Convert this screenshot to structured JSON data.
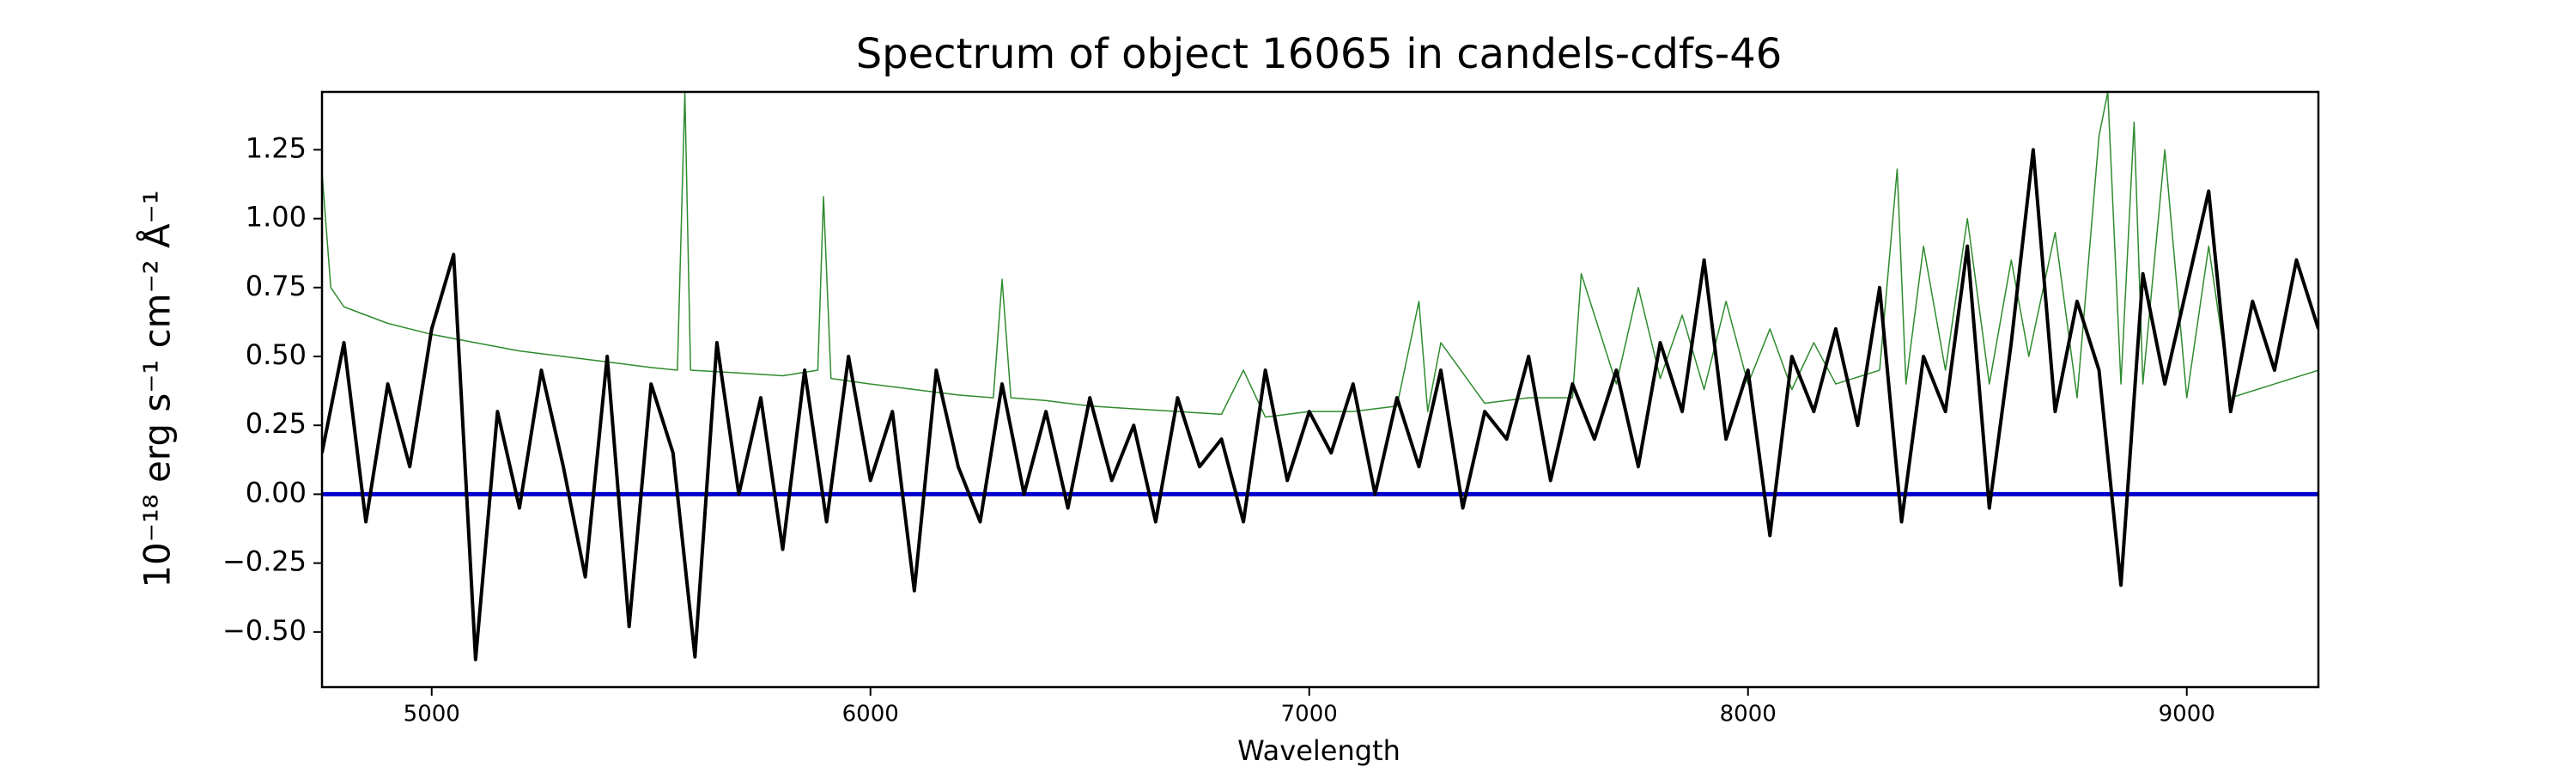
{
  "chart_data": {
    "type": "line",
    "title": "Spectrum of object 16065 in candels-cdfs-46",
    "xlabel": "Wavelength",
    "ylabel": "10⁻¹⁸ erg s⁻¹ cm⁻² Å⁻¹",
    "xlim": [
      4750,
      9300
    ],
    "ylim": [
      -0.7,
      1.46
    ],
    "xticks": [
      5000,
      6000,
      7000,
      8000,
      9000
    ],
    "yticks": [
      {
        "value": -0.5,
        "label": "−0.50"
      },
      {
        "value": -0.25,
        "label": "−0.25"
      },
      {
        "value": 0,
        "label": "0.00"
      },
      {
        "value": 0.25,
        "label": "0.25"
      },
      {
        "value": 0.5,
        "label": "0.50"
      },
      {
        "value": 0.75,
        "label": "0.75"
      },
      {
        "value": 1.0,
        "label": "1.00"
      },
      {
        "value": 1.25,
        "label": "1.25"
      }
    ],
    "grid": false,
    "series": [
      {
        "color": "#2e8b2e",
        "linewidth": 1.5,
        "x": [
          4750,
          4770,
          4800,
          4900,
          5000,
          5100,
          5200,
          5300,
          5400,
          5500,
          5560,
          5577,
          5590,
          5700,
          5800,
          5880,
          5893,
          5910,
          6000,
          6100,
          6200,
          6280,
          6300,
          6320,
          6400,
          6500,
          6600,
          6700,
          6800,
          6850,
          6900,
          7000,
          7100,
          7200,
          7250,
          7270,
          7300,
          7400,
          7500,
          7600,
          7620,
          7700,
          7750,
          7800,
          7850,
          7900,
          7950,
          8000,
          8050,
          8100,
          8150,
          8200,
          8300,
          8340,
          8360,
          8400,
          8450,
          8500,
          8550,
          8600,
          8640,
          8700,
          8750,
          8800,
          8820,
          8850,
          8880,
          8900,
          8950,
          9000,
          9050,
          9100,
          9200,
          9300
        ],
        "values": [
          1.17,
          0.75,
          0.68,
          0.62,
          0.58,
          0.55,
          0.52,
          0.5,
          0.48,
          0.46,
          0.45,
          1.46,
          0.45,
          0.44,
          0.43,
          0.45,
          1.08,
          0.42,
          0.4,
          0.38,
          0.36,
          0.35,
          0.78,
          0.35,
          0.34,
          0.32,
          0.31,
          0.3,
          0.29,
          0.45,
          0.28,
          0.3,
          0.3,
          0.32,
          0.7,
          0.3,
          0.55,
          0.33,
          0.35,
          0.35,
          0.8,
          0.4,
          0.75,
          0.42,
          0.65,
          0.38,
          0.7,
          0.4,
          0.6,
          0.38,
          0.55,
          0.4,
          0.45,
          1.18,
          0.4,
          0.9,
          0.45,
          1.0,
          0.4,
          0.85,
          0.5,
          0.95,
          0.35,
          1.3,
          1.46,
          0.4,
          1.35,
          0.4,
          1.25,
          0.35,
          0.9,
          0.35,
          0.4,
          0.45
        ]
      },
      {
        "color": "#0000cc",
        "linewidth": 5,
        "x": [
          4750,
          9300
        ],
        "values": [
          0,
          0
        ]
      },
      {
        "color": "#000000",
        "linewidth": 4,
        "x": [
          4750,
          4800,
          4850,
          4900,
          4950,
          5000,
          5050,
          5100,
          5150,
          5200,
          5250,
          5300,
          5350,
          5400,
          5450,
          5500,
          5550,
          5600,
          5650,
          5700,
          5750,
          5800,
          5850,
          5900,
          5950,
          6000,
          6050,
          6100,
          6150,
          6200,
          6250,
          6300,
          6350,
          6400,
          6450,
          6500,
          6550,
          6600,
          6650,
          6700,
          6750,
          6800,
          6850,
          6900,
          6950,
          7000,
          7050,
          7100,
          7150,
          7200,
          7250,
          7300,
          7350,
          7400,
          7450,
          7500,
          7550,
          7600,
          7650,
          7700,
          7750,
          7800,
          7850,
          7900,
          7950,
          8000,
          8050,
          8100,
          8150,
          8200,
          8250,
          8300,
          8350,
          8400,
          8450,
          8500,
          8550,
          8600,
          8650,
          8700,
          8750,
          8800,
          8850,
          8900,
          8950,
          9000,
          9050,
          9100,
          9150,
          9200,
          9250,
          9300
        ],
        "values": [
          0.15,
          0.55,
          -0.1,
          0.4,
          0.1,
          0.6,
          0.87,
          -0.6,
          0.3,
          -0.05,
          0.45,
          0.1,
          -0.3,
          0.5,
          -0.48,
          0.4,
          0.15,
          -0.59,
          0.55,
          0.0,
          0.35,
          -0.2,
          0.45,
          -0.1,
          0.5,
          0.05,
          0.3,
          -0.35,
          0.45,
          0.1,
          -0.1,
          0.4,
          0.0,
          0.3,
          -0.05,
          0.35,
          0.05,
          0.25,
          -0.1,
          0.35,
          0.1,
          0.2,
          -0.1,
          0.45,
          0.05,
          0.3,
          0.15,
          0.4,
          0.0,
          0.35,
          0.1,
          0.45,
          -0.05,
          0.3,
          0.2,
          0.5,
          0.05,
          0.4,
          0.2,
          0.45,
          0.1,
          0.55,
          0.3,
          0.85,
          0.2,
          0.45,
          -0.15,
          0.5,
          0.3,
          0.6,
          0.25,
          0.75,
          -0.1,
          0.5,
          0.3,
          0.9,
          -0.05,
          0.55,
          1.25,
          0.3,
          0.7,
          0.45,
          -0.33,
          0.8,
          0.4,
          0.75,
          1.1,
          0.3,
          0.7,
          0.45,
          0.85,
          0.6
        ]
      }
    ]
  }
}
